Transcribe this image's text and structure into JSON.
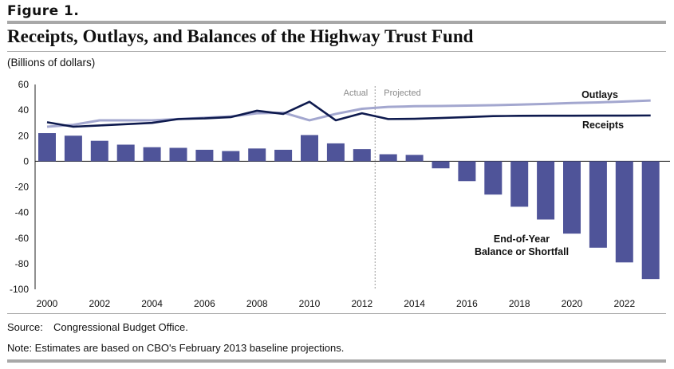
{
  "figure_label": "Figure 1.",
  "title": "Receipts, Outlays, and Balances of the Highway Trust Fund",
  "subtitle": "(Billions of dollars)",
  "source_label": "Source:",
  "source_text": "Congressional Budget Office.",
  "note": "Note: Estimates are based on CBO's February 2013 baseline projections.",
  "colors": {
    "bars": "#4f5499",
    "receipts": "#0e1a4e",
    "outlays": "#a3a7cf",
    "divider": "#9a9a9a"
  },
  "chart_data": {
    "type": "bar",
    "x": [
      2000,
      2001,
      2002,
      2003,
      2004,
      2005,
      2006,
      2007,
      2008,
      2009,
      2010,
      2011,
      2012,
      2013,
      2014,
      2015,
      2016,
      2017,
      2018,
      2019,
      2020,
      2021,
      2022,
      2023
    ],
    "xticks": [
      "2000",
      "2002",
      "2004",
      "2006",
      "2008",
      "2010",
      "2012",
      "2014",
      "2016",
      "2018",
      "2020",
      "2022"
    ],
    "yticks": [
      "60",
      "40",
      "20",
      "0",
      "-20",
      "-40",
      "-60",
      "-80",
      "-100"
    ],
    "ylim": [
      -100,
      60
    ],
    "series": [
      {
        "name": "End-of-Year Balance or Shortfall",
        "type": "bar",
        "values": [
          22,
          20,
          16,
          13,
          11,
          10.5,
          9,
          8,
          10,
          9,
          20.5,
          14,
          9.5,
          5.5,
          5,
          -5.5,
          -15.5,
          -26,
          -35.5,
          -45.5,
          -56.5,
          -67.5,
          -79,
          -92
        ]
      },
      {
        "name": "Outlays",
        "type": "line",
        "values": [
          27,
          28.5,
          32,
          32,
          32,
          33,
          34,
          35,
          37.5,
          38,
          32,
          37,
          41,
          42.5,
          43,
          43.2,
          43.5,
          43.8,
          44.3,
          44.8,
          45.5,
          46,
          46.7,
          47.5
        ]
      },
      {
        "name": "Receipts",
        "type": "line",
        "values": [
          30.5,
          27,
          28,
          29,
          30,
          33,
          33.5,
          34.5,
          39.5,
          37,
          46.5,
          32,
          37.5,
          33,
          33.2,
          33.8,
          34.5,
          35.3,
          35.5,
          35.6,
          35.6,
          35.7,
          35.7,
          35.8
        ]
      }
    ],
    "annotations": {
      "actual": "Actual",
      "projected": "Projected",
      "divider_after": 2012
    },
    "bar_label": [
      "End-of-Year",
      "Balance or Shortfall"
    ]
  }
}
